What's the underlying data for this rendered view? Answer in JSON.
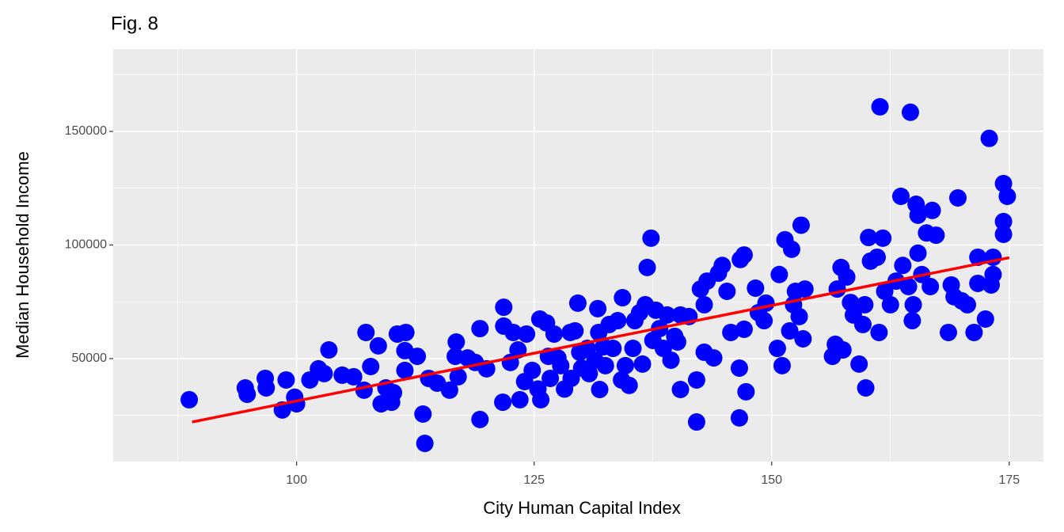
{
  "chart_data": {
    "type": "scatter",
    "title": "Fig. 8",
    "x_label": "City Human Capital Index",
    "y_label": "Median Household Income",
    "xlim": [
      80.7,
      178.6
    ],
    "ylim": [
      4700,
      186200
    ],
    "xticks": [
      100,
      125,
      150,
      175
    ],
    "yticks": [
      50000,
      100000,
      150000
    ],
    "x_minor_grid": [
      87.5,
      112.5,
      137.5,
      162.5
    ],
    "y_minor_grid": [
      25000,
      75000,
      125000,
      175000
    ],
    "grid": true,
    "series": [
      {
        "type": "scatter",
        "color": "#0000ff",
        "x": [
          88.7,
          94.6,
          94.8,
          96.7,
          96.8,
          98.5,
          98.9,
          99.8,
          100,
          101.4,
          102.3,
          102.9,
          103.4,
          104.8,
          106,
          107.1,
          107.3,
          107.8,
          108.6,
          108.9,
          109.4,
          110,
          110.2,
          110.6,
          111.5,
          111.4,
          111.4,
          112.7,
          113.3,
          113.5,
          113.9,
          114.8,
          116.1,
          116.7,
          116.8,
          117,
          118,
          118.8,
          119.3,
          119.3,
          120,
          121.7,
          121.8,
          121.8,
          122.5,
          122.8,
          123.3,
          123.5,
          124,
          124.2,
          124.8,
          125.4,
          125.6,
          125.7,
          126.3,
          126.5,
          126.7,
          127.1,
          127.5,
          127.8,
          128.2,
          128.8,
          128.9,
          129.3,
          129.6,
          129.8,
          130,
          130.6,
          130.8,
          131.4,
          131.7,
          131.8,
          131.9,
          132.3,
          132.5,
          132.9,
          133.3,
          133.8,
          134.2,
          134.3,
          134.6,
          135,
          135.4,
          135.6,
          136.1,
          136.4,
          136.7,
          136.9,
          137.3,
          137.5,
          137.8,
          138.2,
          138.6,
          139,
          139.4,
          139.8,
          140.1,
          140.4,
          140.4,
          141.3,
          142.1,
          142.1,
          142.5,
          142.9,
          143.2,
          142.9,
          143.9,
          144.4,
          144.8,
          145.3,
          145.7,
          146.6,
          146.6,
          146.7,
          147.1,
          147.1,
          147.3,
          148.3,
          148.6,
          149.2,
          149.4,
          150.6,
          150.8,
          151.1,
          151.4,
          151.9,
          152.1,
          152.3,
          152.5,
          152.9,
          153.1,
          153.3,
          153.5,
          156.4,
          156.7,
          156.9,
          157.3,
          157.5,
          157.9,
          158.3,
          158.6,
          159.2,
          159.6,
          159.8,
          159.9,
          160.2,
          160.4,
          161.1,
          161.3,
          161.4,
          161.7,
          161.9,
          162.5,
          163.1,
          163.6,
          163.8,
          164.4,
          164.6,
          164.8,
          164.9,
          165.2,
          165.4,
          165.4,
          165.8,
          166.3,
          166.7,
          166.9,
          167.3,
          168.6,
          168.9,
          169.2,
          169.6,
          170,
          170.6,
          171.3,
          171.7,
          171.7,
          172.5,
          172.9,
          173.1,
          173.3,
          173.3,
          174.4,
          174.4,
          174.4,
          174.8
        ],
        "values": [
          31900,
          37100,
          34300,
          41300,
          37100,
          27400,
          40600,
          33000,
          30100,
          40600,
          45500,
          43400,
          53800,
          42700,
          42000,
          36100,
          61500,
          46500,
          55600,
          30100,
          37100,
          30800,
          35000,
          60800,
          61500,
          44800,
          53500,
          51000,
          25600,
          12700,
          41300,
          39200,
          36100,
          51000,
          57300,
          42000,
          50300,
          48300,
          63200,
          23200,
          45500,
          30800,
          72600,
          64300,
          48300,
          61500,
          53800,
          31900,
          39900,
          60800,
          44800,
          36600,
          67400,
          31900,
          65700,
          51000,
          41300,
          60800,
          50300,
          46900,
          36600,
          61500,
          41300,
          62200,
          74400,
          52800,
          45800,
          54500,
          43400,
          49300,
          72000,
          61500,
          36400,
          55200,
          46900,
          65000,
          54500,
          66700,
          40600,
          76800,
          46900,
          38200,
          54500,
          66700,
          70200,
          47600,
          73700,
          90100,
          103000,
          58000,
          71300,
          63200,
          54500,
          69200,
          49300,
          59800,
          57300,
          36400,
          69200,
          68500,
          40600,
          22100,
          80600,
          73700,
          84100,
          52800,
          50300,
          87600,
          91000,
          79600,
          61500,
          45800,
          23900,
          93600,
          95600,
          62900,
          35400,
          81000,
          70200,
          66700,
          74400,
          54500,
          87000,
          46900,
          102300,
          62200,
          98100,
          73700,
          79600,
          68500,
          108700,
          58700,
          80600,
          51000,
          56300,
          80600,
          90100,
          53800,
          85900,
          74700,
          69200,
          47600,
          65000,
          73700,
          37100,
          103300,
          92900,
          94600,
          61500,
          160800,
          103000,
          79600,
          73700,
          84100,
          121400,
          91000,
          81700,
          158400,
          66700,
          73700,
          117900,
          113100,
          96400,
          87000,
          105300,
          81700,
          115200,
          104300,
          61500,
          82400,
          77200,
          120700,
          75400,
          73700,
          61500,
          94600,
          83100,
          67400,
          146900,
          82400,
          94600,
          87000,
          127000,
          110300,
          104700,
          121400
        ]
      },
      {
        "type": "line",
        "color": "#ff0000",
        "x": [
          89,
          175
        ],
        "values": [
          22100,
          94400
        ]
      }
    ]
  }
}
